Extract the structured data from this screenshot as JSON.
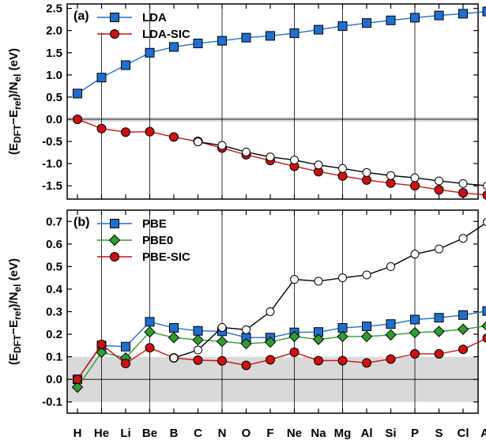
{
  "chart_data": [
    {
      "type": "line",
      "panel_label": "(a)",
      "ylabel": "(E_DFT−E_ref)/N_el  (eV)",
      "ylim": [
        -1.8,
        2.6
      ],
      "yticks": [
        -1.5,
        -1.0,
        -0.5,
        0.0,
        0.5,
        1.0,
        1.5,
        2.0,
        2.5
      ],
      "ytick_labels": [
        "-1.5",
        "-1.0",
        "-0.5",
        "0.0",
        "0.5",
        "1.0",
        "1.5",
        "2.0",
        "2.5"
      ],
      "x": [
        "H",
        "He",
        "Li",
        "Be",
        "B",
        "C",
        "N",
        "O",
        "F",
        "Ne",
        "Na",
        "Mg",
        "Al",
        "Si",
        "P",
        "S",
        "Cl",
        "Ar"
      ],
      "shaded_band": [
        -0.05,
        0.05
      ],
      "legend_position": "top-left",
      "series": [
        {
          "name": "LDA",
          "marker": "square",
          "color": "#1f6fd1",
          "values": [
            0.58,
            0.94,
            1.22,
            1.5,
            1.63,
            1.71,
            1.77,
            1.84,
            1.88,
            1.94,
            2.02,
            2.1,
            2.17,
            2.23,
            2.29,
            2.34,
            2.38,
            2.43
          ]
        },
        {
          "name": "LDA-SIC",
          "marker": "circle",
          "color": "#cc1111",
          "values": [
            0.0,
            -0.21,
            -0.29,
            -0.28,
            -0.4,
            -0.5,
            -0.65,
            -0.8,
            -0.93,
            -1.06,
            -1.18,
            -1.28,
            -1.37,
            -1.44,
            -1.5,
            -1.59,
            -1.66,
            -1.71
          ]
        },
        {
          "name": "",
          "marker": "open-circle",
          "color": "#000000",
          "values": [
            null,
            null,
            null,
            null,
            null,
            -0.51,
            -0.59,
            -0.74,
            -0.85,
            -0.92,
            -1.03,
            -1.11,
            -1.2,
            -1.27,
            -1.32,
            -1.39,
            -1.45,
            -1.5
          ]
        }
      ]
    },
    {
      "type": "line",
      "panel_label": "(b)",
      "ylabel": "(E_DFT−E_ref)/N_el  (eV)",
      "ylim": [
        -0.15,
        0.75
      ],
      "yticks": [
        -0.1,
        0.0,
        0.1,
        0.2,
        0.3,
        0.4,
        0.5,
        0.6,
        0.7
      ],
      "ytick_labels": [
        "-0.1",
        "0.0",
        "0.1",
        "0.2",
        "0.3",
        "0.4",
        "0.5",
        "0.6",
        "0.7"
      ],
      "x": [
        "H",
        "He",
        "Li",
        "Be",
        "B",
        "C",
        "N",
        "O",
        "F",
        "Ne",
        "Na",
        "Mg",
        "Al",
        "Si",
        "P",
        "S",
        "Cl",
        "Ar"
      ],
      "xtick_labels": [
        "H",
        "He",
        "Li",
        "Be",
        "B",
        "C",
        "N",
        "O",
        "F",
        "Ne",
        "Na",
        "Mg",
        "Al",
        "Si",
        "P",
        "S",
        "Cl",
        "Ar"
      ],
      "shaded_band": [
        -0.1,
        0.1
      ],
      "legend_position": "top-left",
      "series": [
        {
          "name": "PBE",
          "marker": "square",
          "color": "#1f6fd1",
          "values": [
            0.0,
            0.15,
            0.145,
            0.255,
            0.228,
            0.215,
            0.213,
            0.185,
            0.185,
            0.208,
            0.21,
            0.228,
            0.235,
            0.245,
            0.265,
            0.273,
            0.285,
            0.303
          ]
        },
        {
          "name": "PBE0",
          "marker": "diamond",
          "color": "#2e9e2e",
          "values": [
            -0.035,
            0.12,
            0.095,
            0.21,
            0.185,
            0.175,
            0.168,
            0.158,
            0.165,
            0.19,
            0.177,
            0.19,
            0.19,
            0.197,
            0.207,
            0.212,
            0.222,
            0.237
          ]
        },
        {
          "name": "PBE-SIC",
          "marker": "circle",
          "color": "#cc1111",
          "values": [
            0.0,
            0.155,
            0.07,
            0.14,
            0.095,
            0.085,
            0.082,
            0.062,
            0.087,
            0.12,
            0.083,
            0.083,
            0.073,
            0.09,
            0.113,
            0.113,
            0.133,
            0.183
          ]
        },
        {
          "name": "",
          "marker": "open-circle",
          "color": "#000000",
          "values": [
            null,
            null,
            null,
            null,
            0.095,
            0.13,
            0.23,
            0.22,
            0.3,
            0.443,
            0.435,
            0.45,
            0.463,
            0.5,
            0.555,
            0.578,
            0.625,
            0.697
          ]
        }
      ]
    }
  ]
}
